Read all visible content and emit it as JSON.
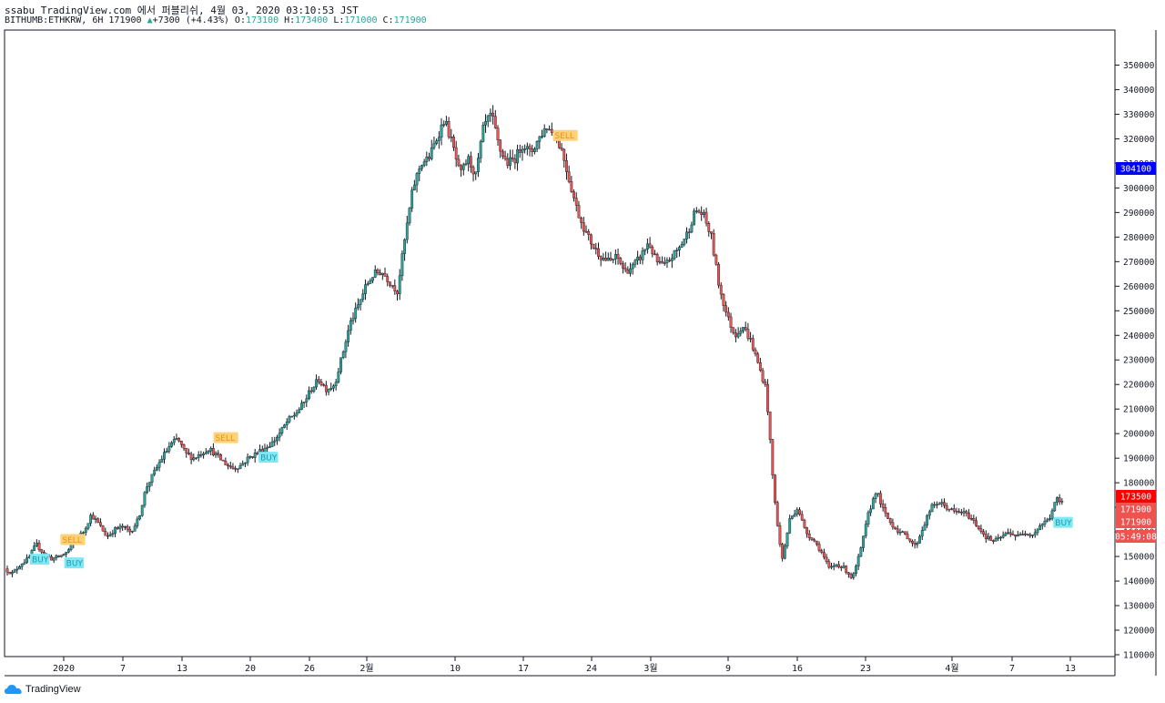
{
  "header": {
    "line1": "ssabu TradingView.com 에서 퍼블리쉬, 4월 03, 2020 03:10:53 JST",
    "symbol": "BITHUMB:ETHKRW, 6H",
    "last": "171900",
    "arrow": "▲",
    "change": "+7300 (+4.43%)",
    "o_label": "O:",
    "o": "173100",
    "h_label": "H:",
    "h": "173400",
    "l_label": "L:",
    "l": "171000",
    "c_label": "C:",
    "c": "171900"
  },
  "chart_data": {
    "type": "candlestick",
    "symbol": "BITHUMB:ETHKRW",
    "interval": "6H",
    "ylim": [
      110000,
      355000
    ],
    "y_ticks": [
      110000,
      120000,
      130000,
      140000,
      150000,
      160000,
      170000,
      180000,
      190000,
      200000,
      210000,
      220000,
      230000,
      240000,
      250000,
      260000,
      270000,
      280000,
      290000,
      300000,
      310000,
      320000,
      330000,
      340000,
      350000
    ],
    "x_ticks": [
      "2020",
      "7",
      "13",
      "20",
      "26",
      "2월",
      "10",
      "17",
      "24",
      "3월",
      "9",
      "16",
      "23",
      "4월",
      "7",
      "13"
    ],
    "price_path": [
      [
        0,
        145000
      ],
      [
        0.8,
        143000
      ],
      [
        1.6,
        147000
      ],
      [
        2.4,
        149000
      ],
      [
        3.2,
        155000
      ],
      [
        4.0,
        151000
      ],
      [
        4.8,
        149000
      ],
      [
        5.6,
        150000
      ],
      [
        6.4,
        152000
      ],
      [
        7.2,
        157000
      ],
      [
        8.0,
        160000
      ],
      [
        8.8,
        167000
      ],
      [
        9.6,
        163000
      ],
      [
        10.4,
        158000
      ],
      [
        11.2,
        161000
      ],
      [
        12.0,
        162000
      ],
      [
        12.8,
        160000
      ],
      [
        13.6,
        165000
      ],
      [
        14.4,
        178000
      ],
      [
        15.2,
        184000
      ],
      [
        16.0,
        190000
      ],
      [
        16.8,
        195000
      ],
      [
        17.6,
        198000
      ],
      [
        18.4,
        192000
      ],
      [
        19.2,
        190000
      ],
      [
        20.0,
        192000
      ],
      [
        20.8,
        194000
      ],
      [
        21.6,
        191000
      ],
      [
        22.4,
        188000
      ],
      [
        23.2,
        186000
      ],
      [
        24.0,
        187000
      ],
      [
        24.8,
        190000
      ],
      [
        25.6,
        192000
      ],
      [
        26.4,
        194000
      ],
      [
        27.2,
        196000
      ],
      [
        28.0,
        200000
      ],
      [
        28.8,
        205000
      ],
      [
        29.6,
        208000
      ],
      [
        30.4,
        212000
      ],
      [
        31.2,
        218000
      ],
      [
        32.0,
        222000
      ],
      [
        32.8,
        218000
      ],
      [
        33.6,
        220000
      ],
      [
        34.4,
        232000
      ],
      [
        35.2,
        245000
      ],
      [
        36.0,
        252000
      ],
      [
        36.8,
        260000
      ],
      [
        37.6,
        265000
      ],
      [
        38.4,
        266000
      ],
      [
        39.2,
        262000
      ],
      [
        40.0,
        258000
      ],
      [
        40.8,
        280000
      ],
      [
        41.6,
        300000
      ],
      [
        42.4,
        310000
      ],
      [
        43.2,
        312000
      ],
      [
        44.0,
        320000
      ],
      [
        44.8,
        328000
      ],
      [
        45.6,
        318000
      ],
      [
        46.4,
        305000
      ],
      [
        47.2,
        312000
      ],
      [
        48.0,
        305000
      ],
      [
        48.8,
        325000
      ],
      [
        49.6,
        330000
      ],
      [
        50.4,
        316000
      ],
      [
        51.2,
        310000
      ],
      [
        52.0,
        312000
      ],
      [
        52.8,
        318000
      ],
      [
        53.6,
        314000
      ],
      [
        54.4,
        320000
      ],
      [
        55.2,
        325000
      ],
      [
        56.0,
        322000
      ],
      [
        56.8,
        315000
      ],
      [
        57.6,
        302000
      ],
      [
        58.4,
        290000
      ],
      [
        59.2,
        282000
      ],
      [
        60.0,
        276000
      ],
      [
        60.8,
        272000
      ],
      [
        61.6,
        270000
      ],
      [
        62.4,
        272000
      ],
      [
        63.2,
        266000
      ],
      [
        64.0,
        268000
      ],
      [
        64.8,
        272000
      ],
      [
        65.6,
        278000
      ],
      [
        66.4,
        270000
      ],
      [
        67.2,
        268000
      ],
      [
        68.0,
        272000
      ],
      [
        68.8,
        276000
      ],
      [
        69.6,
        282000
      ],
      [
        70.4,
        291000
      ],
      [
        71.2,
        289000
      ],
      [
        72.0,
        280000
      ],
      [
        72.8,
        260000
      ],
      [
        73.6,
        248000
      ],
      [
        74.4,
        240000
      ],
      [
        75.2,
        244000
      ],
      [
        76.0,
        238000
      ],
      [
        76.8,
        228000
      ],
      [
        77.6,
        218000
      ],
      [
        78.4,
        175000
      ],
      [
        79.2,
        148000
      ],
      [
        80.0,
        165000
      ],
      [
        80.8,
        170000
      ],
      [
        81.6,
        160000
      ],
      [
        82.4,
        157000
      ],
      [
        83.2,
        152000
      ],
      [
        84.0,
        145000
      ],
      [
        84.8,
        147000
      ],
      [
        85.6,
        145000
      ],
      [
        86.4,
        141000
      ],
      [
        87.2,
        152000
      ],
      [
        88.0,
        167000
      ],
      [
        88.8,
        177000
      ],
      [
        89.6,
        168000
      ],
      [
        90.4,
        163000
      ],
      [
        91.2,
        160000
      ],
      [
        92.0,
        158000
      ],
      [
        92.8,
        154000
      ],
      [
        93.6,
        162000
      ],
      [
        94.4,
        170000
      ],
      [
        95.2,
        172000
      ],
      [
        96.0,
        170000
      ],
      [
        96.8,
        168000
      ],
      [
        97.6,
        168000
      ],
      [
        98.4,
        166000
      ],
      [
        99.2,
        162000
      ],
      [
        100.0,
        158000
      ],
      [
        100.8,
        156000
      ],
      [
        101.6,
        158000
      ],
      [
        102.4,
        160000
      ],
      [
        103.2,
        158000
      ],
      [
        104.0,
        160000
      ],
      [
        104.8,
        159000
      ],
      [
        105.6,
        163000
      ],
      [
        106.4,
        165000
      ],
      [
        107.2,
        173500
      ],
      [
        107.6,
        171900
      ]
    ],
    "price_labels": [
      {
        "text": "304100",
        "value": 304100,
        "color": "#0000ff"
      },
      {
        "text": "173500",
        "value": 173500,
        "color": "#ff0000"
      },
      {
        "text": "171900",
        "value": 171900,
        "color": "#ef5350"
      },
      {
        "text": "171900",
        "value": 171900,
        "color": "#ef5350"
      },
      {
        "text": "05:49:08",
        "value": 163000,
        "color": "#ef5350"
      }
    ],
    "signals": [
      {
        "text": "BUY",
        "type": "buy",
        "day": 2.5,
        "value": 148500
      },
      {
        "text": "SELL",
        "type": "sell",
        "day": 5.6,
        "value": 156500
      },
      {
        "text": "BUY",
        "type": "buy",
        "day": 6.0,
        "value": 147000
      },
      {
        "text": "SELL",
        "type": "sell",
        "day": 21.2,
        "value": 198000
      },
      {
        "text": "BUY",
        "type": "buy",
        "day": 25.8,
        "value": 190000
      },
      {
        "text": "SELL",
        "type": "sell",
        "day": 55.8,
        "value": 321000
      },
      {
        "text": "BUY",
        "type": "buy",
        "day": 106.8,
        "value": 163500
      }
    ]
  },
  "footer": {
    "brand": "TradingView",
    "logo_icon": "cloud-icon"
  }
}
